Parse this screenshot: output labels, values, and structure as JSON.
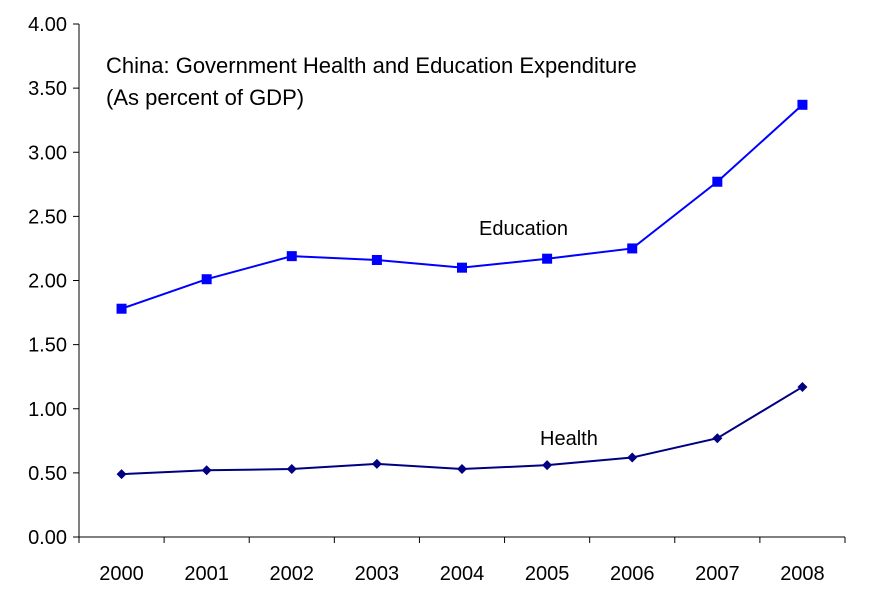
{
  "chart_data": {
    "type": "line",
    "title": "China: Government Health and Education Expenditure",
    "subtitle": "(As percent of GDP)",
    "xlabel": "",
    "ylabel": "",
    "ylim": [
      0,
      4
    ],
    "y_ticks": [
      "0.00",
      "0.50",
      "1.00",
      "1.50",
      "2.00",
      "2.50",
      "3.00",
      "3.50",
      "4.00"
    ],
    "categories": [
      "2000",
      "2001",
      "2002",
      "2003",
      "2004",
      "2005",
      "2006",
      "2007",
      "2008"
    ],
    "grid": false,
    "legend": "none",
    "series": [
      {
        "name": "Education",
        "color": "#0000ff",
        "marker": "square",
        "values": [
          1.78,
          2.01,
          2.19,
          2.16,
          2.1,
          2.17,
          2.25,
          2.77,
          3.37
        ]
      },
      {
        "name": "Health",
        "color": "#000080",
        "marker": "diamond",
        "values": [
          0.49,
          0.52,
          0.53,
          0.57,
          0.53,
          0.56,
          0.62,
          0.77,
          1.17
        ]
      }
    ]
  }
}
